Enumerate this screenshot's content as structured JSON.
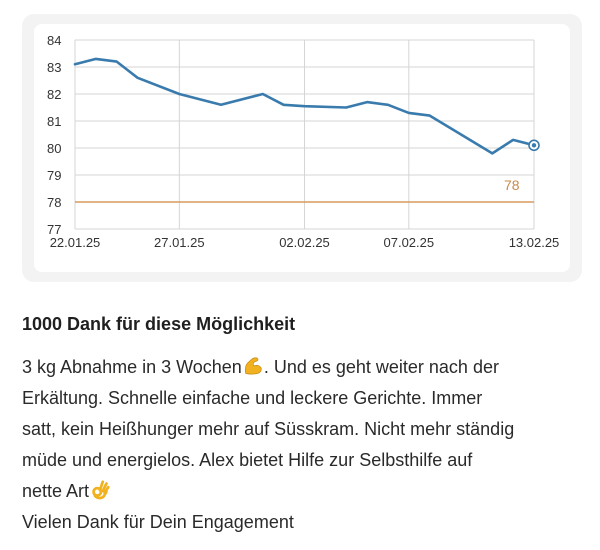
{
  "chart_data": {
    "type": "line",
    "x": [
      "22.01.25",
      "23.01.25",
      "24.01.25",
      "25.01.25",
      "27.01.25",
      "29.01.25",
      "31.01.25",
      "01.02.25",
      "02.02.25",
      "04.02.25",
      "05.02.25",
      "06.02.25",
      "07.02.25",
      "08.02.25",
      "11.02.25",
      "12.02.25",
      "13.02.25"
    ],
    "series": [
      {
        "values": [
          83.1,
          83.3,
          83.2,
          82.6,
          82.0,
          81.6,
          82.0,
          81.6,
          81.55,
          81.5,
          81.7,
          81.6,
          81.3,
          81.2,
          79.8,
          80.3,
          80.1
        ]
      }
    ],
    "x_ticks": [
      "22.01.25",
      "27.01.25",
      "02.02.25",
      "07.02.25",
      "13.02.25"
    ],
    "y_ticks": [
      77,
      78,
      79,
      80,
      81,
      82,
      83,
      84
    ],
    "ylim": [
      77,
      84
    ],
    "target_value": 78,
    "target_label": "78",
    "grid": true,
    "colors": {
      "line": "#3a7bad",
      "target": "#d89a5c",
      "target_label": "#c98a4c",
      "grid": "#d5d5d5",
      "axis_text": "#333333"
    }
  },
  "post": {
    "title": "1000 Dank für diese Möglichkeit",
    "lines": [
      {
        "text": "3 kg Abnahme in 3 Wochen",
        "emoji": "flexed-biceps-icon",
        "after": ". Und es geht weiter nach der"
      },
      {
        "text": "Erkältung. Schnelle einfache und leckere Gerichte. Immer"
      },
      {
        "text": "satt, kein Heißhunger mehr auf Süsskram. Nicht mehr ständig"
      },
      {
        "text": "müde und energielos. Alex bietet Hilfe zur Selbsthilfe auf"
      },
      {
        "text": "nette Art",
        "emoji": "ok-hand-icon"
      },
      {
        "text": "Vielen Dank für Dein Engagement"
      }
    ]
  }
}
